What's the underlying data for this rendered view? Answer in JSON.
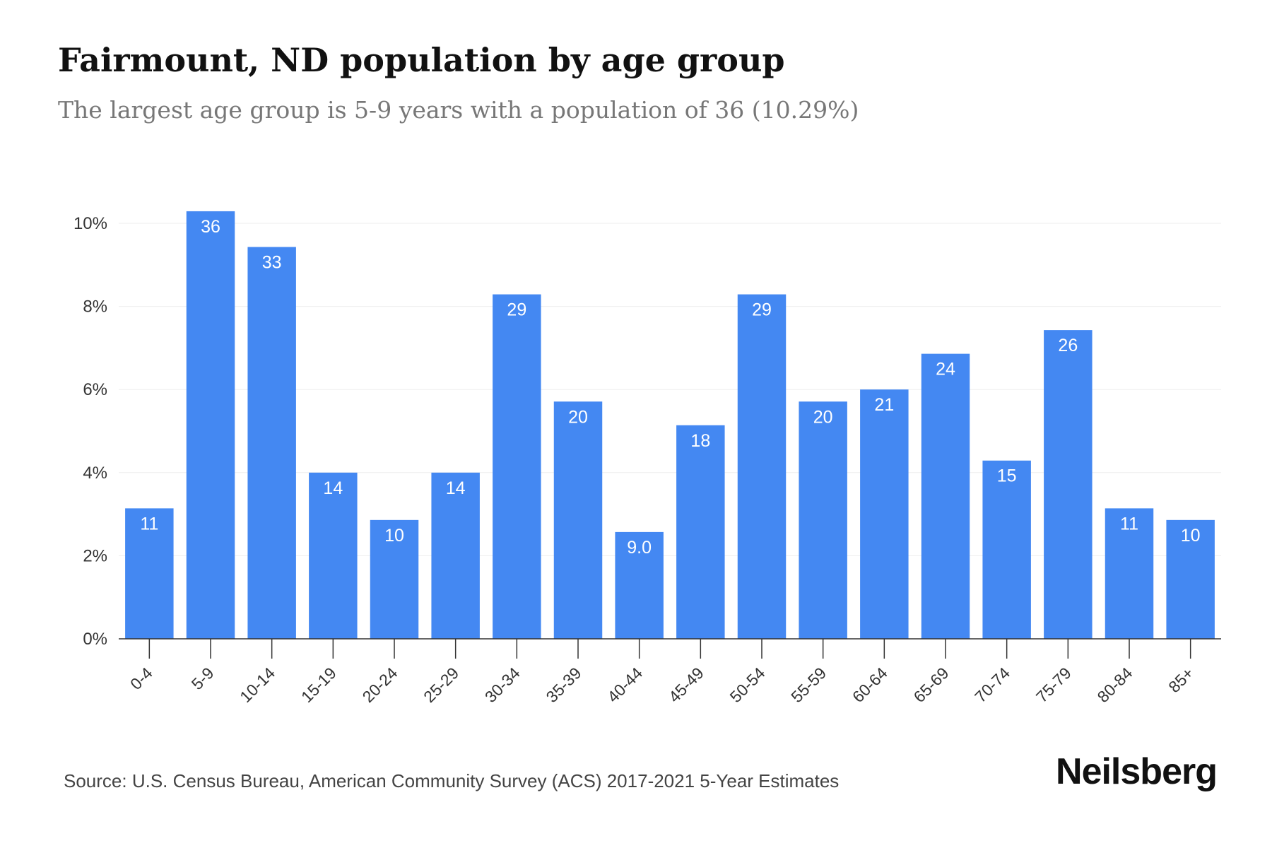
{
  "header": {
    "title": "Fairmount, ND population by age group",
    "subtitle": "The largest age group is 5-9 years with a population of 36 (10.29%)"
  },
  "footer": {
    "source": "Source: U.S. Census Bureau, American Community Survey (ACS) 2017-2021 5-Year Estimates",
    "brand": "Neilsberg"
  },
  "colors": {
    "bar": "#4488f2",
    "grid": "#eeeeee",
    "axis": "#333333"
  },
  "chart_data": {
    "type": "bar",
    "title": "Fairmount, ND population by age group",
    "subtitle": "The largest age group is 5-9 years with a population of 36 (10.29%)",
    "xlabel": "",
    "ylabel": "",
    "ylim": [
      0,
      10.5
    ],
    "yticks": [
      0,
      2,
      4,
      6,
      8,
      10
    ],
    "ytick_labels": [
      "0%",
      "2%",
      "4%",
      "6%",
      "8%",
      "10%"
    ],
    "grid": true,
    "categories": [
      "0-4",
      "5-9",
      "10-14",
      "15-19",
      "20-24",
      "25-29",
      "30-34",
      "35-39",
      "40-44",
      "45-49",
      "50-54",
      "55-59",
      "60-64",
      "65-69",
      "70-74",
      "75-79",
      "80-84",
      "85+"
    ],
    "values": [
      3.14,
      10.29,
      9.43,
      4.0,
      2.86,
      4.0,
      8.29,
      5.71,
      2.57,
      5.14,
      8.29,
      5.71,
      6.0,
      6.86,
      4.29,
      7.43,
      3.14,
      2.86
    ],
    "data_labels": [
      "11",
      "36",
      "33",
      "14",
      "10",
      "14",
      "29",
      "20",
      "9.0",
      "18",
      "29",
      "20",
      "21",
      "24",
      "15",
      "26",
      "11",
      "10"
    ]
  }
}
